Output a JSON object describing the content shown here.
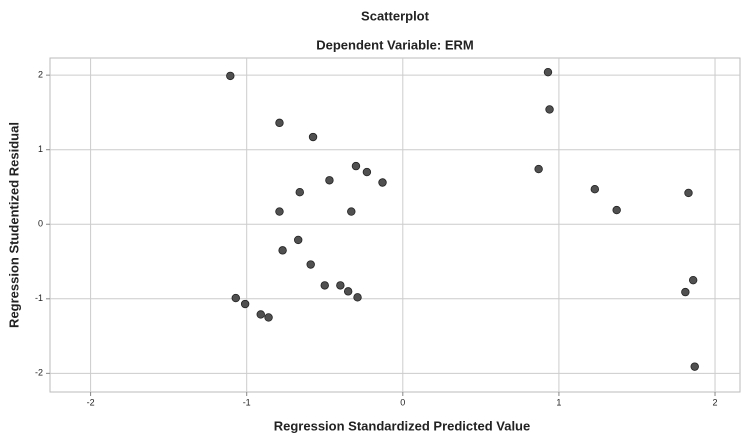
{
  "chart_data": {
    "type": "scatter",
    "title": "Scatterplot",
    "subtitle": "Dependent Variable: ERM",
    "x_label": "Regression Standardized Predicted Value",
    "y_label": "Regression Studentized Residual",
    "xlim": [
      -2.26,
      2.16
    ],
    "ylim": [
      -2.25,
      2.23
    ],
    "xticks": [
      -2,
      -1,
      0,
      1,
      2
    ],
    "yticks": [
      -2,
      -1,
      0,
      1,
      2
    ],
    "grid": true,
    "color": "#505050",
    "x": [
      -1.105,
      -0.79,
      -0.575,
      0.93,
      0.94,
      -0.66,
      -0.47,
      -0.3,
      -0.23,
      -0.13,
      -0.79,
      -0.33,
      0.87,
      1.23,
      1.37,
      1.83,
      -0.67,
      -0.77,
      -0.59,
      -0.5,
      -0.4,
      -0.35,
      -0.29,
      -1.07,
      -1.01,
      -0.91,
      -0.86,
      1.86,
      1.81,
      1.87
    ],
    "y": [
      1.99,
      1.36,
      1.17,
      2.04,
      1.54,
      0.43,
      0.59,
      0.78,
      0.7,
      0.56,
      0.17,
      0.17,
      0.74,
      0.47,
      0.19,
      0.42,
      -0.21,
      -0.35,
      -0.54,
      -0.82,
      -0.82,
      -0.9,
      -0.98,
      -0.99,
      -1.07,
      -1.21,
      -1.25,
      -0.75,
      -0.91,
      -1.91
    ]
  }
}
